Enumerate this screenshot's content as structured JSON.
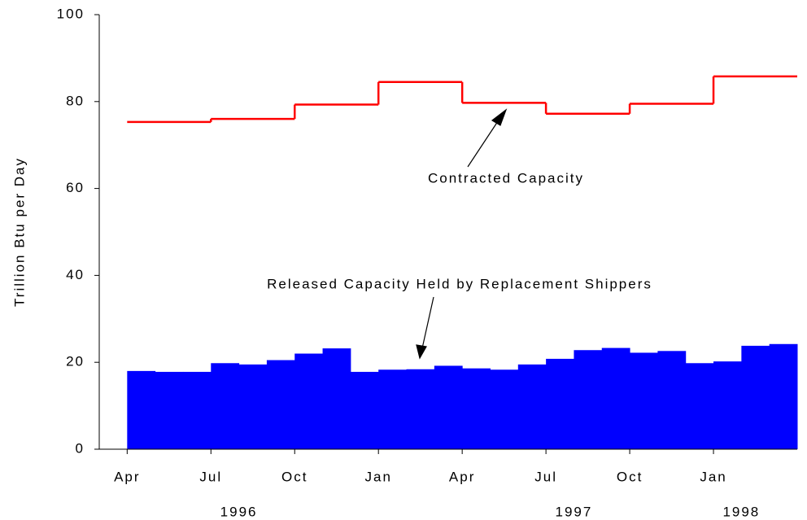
{
  "chart_data": {
    "type": "step-area",
    "y_label": "Trillion Btu per Day",
    "xlim": [
      "1996-03",
      "1998-04"
    ],
    "ylim": [
      0,
      100
    ],
    "yticks": [
      0,
      20,
      40,
      60,
      80,
      100
    ],
    "xticks": [
      {
        "value": "1996-04",
        "label": "Apr"
      },
      {
        "value": "1996-07",
        "label": "Jul"
      },
      {
        "value": "1996-10",
        "label": "Oct"
      },
      {
        "value": "1997-01",
        "label": "Jan"
      },
      {
        "value": "1997-04",
        "label": "Apr"
      },
      {
        "value": "1997-07",
        "label": "Jul"
      },
      {
        "value": "1997-10",
        "label": "Oct"
      },
      {
        "value": "1998-01",
        "label": "Jan"
      }
    ],
    "year_labels": [
      {
        "value": "1996-08",
        "label": "1996"
      },
      {
        "value": "1997-08",
        "label": "1997"
      },
      {
        "value": "1998-02",
        "label": "1998"
      }
    ],
    "series": [
      {
        "name": "Contracted Capacity",
        "color": "#ff0000",
        "style": "step-line",
        "x": [
          "1996-04",
          "1996-07",
          "1996-10",
          "1997-01",
          "1997-04",
          "1997-07",
          "1997-10",
          "1998-01",
          "1998-04"
        ],
        "values": [
          75.3,
          76,
          79.3,
          84.5,
          79.7,
          77.2,
          79.5,
          85.8,
          85.8
        ]
      },
      {
        "name": "Released Capacity Held by Replacement Shippers",
        "color": "#0000ff",
        "style": "step-area",
        "x": [
          "1996-04",
          "1996-05",
          "1996-06",
          "1996-07",
          "1996-08",
          "1996-09",
          "1996-10",
          "1996-11",
          "1996-12",
          "1997-01",
          "1997-02",
          "1997-03",
          "1997-04",
          "1997-05",
          "1997-06",
          "1997-07",
          "1997-08",
          "1997-09",
          "1997-10",
          "1997-11",
          "1997-12",
          "1998-01",
          "1998-02",
          "1998-03"
        ],
        "values": [
          18,
          17.8,
          17.8,
          19.8,
          19.5,
          20.5,
          22,
          23.2,
          17.8,
          18.3,
          18.4,
          19.2,
          18.6,
          18.3,
          19.5,
          20.8,
          22.8,
          23.3,
          22.2,
          22.6,
          19.8,
          20.2,
          23.8,
          24.2
        ]
      }
    ]
  }
}
